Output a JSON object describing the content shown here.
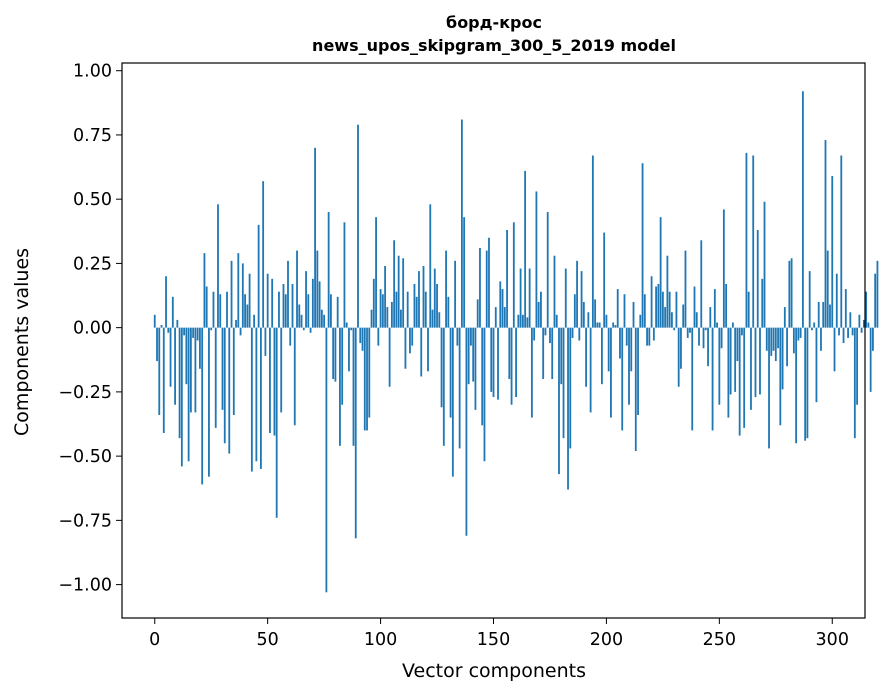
{
  "chart_data": {
    "type": "bar",
    "title": "борд-крос",
    "subtitle": "news_upos_skipgram_300_5_2019 model",
    "xlabel": "Vector components",
    "ylabel": "Components values",
    "xlim": [
      -14.5,
      314.5
    ],
    "ylim": [
      -1.13,
      1.03
    ],
    "xticks": [
      0,
      50,
      100,
      150,
      200,
      250,
      300
    ],
    "xtick_labels": [
      "0",
      "50",
      "100",
      "150",
      "200",
      "250",
      "300"
    ],
    "yticks": [
      1.0,
      0.75,
      0.5,
      0.25,
      0.0,
      -0.25,
      -0.5,
      -0.75,
      -1.0
    ],
    "ytick_labels": [
      "1.00",
      "0.75",
      "0.50",
      "0.25",
      "0.00",
      "−0.25",
      "−0.50",
      "−0.75",
      "−1.00"
    ],
    "grid": false,
    "bar_color": "#1f77b4",
    "values": [
      0.05,
      -0.13,
      -0.34,
      0.01,
      -0.41,
      0.2,
      -0.02,
      -0.23,
      0.12,
      -0.3,
      0.03,
      -0.43,
      -0.54,
      -0.03,
      -0.22,
      -0.52,
      -0.33,
      -0.04,
      -0.33,
      -0.05,
      -0.16,
      -0.61,
      0.29,
      0.16,
      -0.58,
      -0.01,
      0.14,
      -0.39,
      0.48,
      0.13,
      -0.32,
      -0.45,
      0.14,
      -0.49,
      0.26,
      -0.34,
      0.03,
      0.29,
      -0.03,
      0.25,
      0.13,
      0.09,
      0.21,
      -0.56,
      0.05,
      -0.52,
      0.4,
      -0.55,
      0.57,
      -0.11,
      0.21,
      -0.41,
      0.19,
      -0.42,
      -0.74,
      0.14,
      -0.33,
      0.17,
      0.13,
      0.26,
      -0.07,
      0.17,
      -0.38,
      0.3,
      0.09,
      0.05,
      -0.01,
      0.22,
      0.13,
      -0.02,
      0.19,
      0.7,
      0.3,
      0.18,
      0.07,
      0.05,
      -1.03,
      0.45,
      0.13,
      -0.2,
      -0.21,
      0.12,
      -0.46,
      -0.3,
      0.41,
      0.02,
      -0.17,
      -0.01,
      -0.46,
      -0.82,
      0.79,
      -0.06,
      -0.09,
      -0.4,
      -0.4,
      -0.35,
      0.07,
      0.19,
      0.43,
      -0.07,
      0.15,
      0.13,
      0.24,
      0.08,
      -0.23,
      0.1,
      0.34,
      0.14,
      0.28,
      0.07,
      0.27,
      -0.16,
      0.14,
      -0.1,
      -0.07,
      0.17,
      0.12,
      0.22,
      -0.19,
      0.24,
      0.14,
      -0.17,
      0.48,
      0.07,
      0.23,
      0.17,
      0.06,
      -0.31,
      -0.46,
      0.3,
      0.12,
      -0.35,
      -0.58,
      0.26,
      -0.07,
      -0.47,
      0.81,
      0.43,
      -0.81,
      -0.22,
      -0.07,
      -0.21,
      -0.32,
      0.11,
      0.31,
      -0.38,
      -0.52,
      0.3,
      0.35,
      -0.25,
      -0.27,
      0.08,
      -0.28,
      0.18,
      0.15,
      0.08,
      0.38,
      -0.2,
      -0.3,
      0.41,
      -0.27,
      0.05,
      0.23,
      0.05,
      0.61,
      0.04,
      0.23,
      -0.35,
      -0.05,
      0.53,
      0.1,
      0.14,
      -0.2,
      -0.03,
      0.45,
      -0.06,
      -0.2,
      0.28,
      0.05,
      -0.57,
      -0.22,
      -0.43,
      0.23,
      -0.63,
      -0.47,
      -0.04,
      0.13,
      0.26,
      -0.05,
      0.22,
      0.1,
      -0.23,
      0.06,
      -0.33,
      0.67,
      0.11,
      0.02,
      0.02,
      -0.22,
      0.37,
      0.05,
      -0.17,
      -0.35,
      0.02,
      0.01,
      0.15,
      -0.12,
      -0.4,
      0.13,
      -0.07,
      -0.3,
      -0.17,
      0.1,
      -0.48,
      -0.34,
      0.05,
      0.64,
      0.13,
      -0.07,
      -0.07,
      0.2,
      -0.05,
      0.16,
      0.17,
      0.43,
      0.14,
      0.08,
      0.28,
      0.14,
      0.06,
      -0.01,
      0.14,
      -0.23,
      -0.16,
      0.09,
      0.3,
      -0.04,
      -0.02,
      -0.4,
      0.16,
      0.06,
      -0.07,
      0.34,
      -0.08,
      -0.01,
      -0.15,
      0.08,
      -0.4,
      0.15,
      0.02,
      -0.3,
      -0.08,
      0.46,
      0.17,
      -0.35,
      -0.26,
      0.02,
      -0.25,
      -0.13,
      -0.42,
      -0.03,
      -0.39,
      0.68,
      0.14,
      -0.32,
      0.67,
      -0.27,
      0.38,
      -0.26,
      0.19,
      0.49,
      -0.09,
      -0.47,
      -0.11,
      -0.09,
      -0.13,
      -0.08,
      -0.38,
      -0.24,
      0.08,
      -0.15,
      0.26,
      0.27,
      -0.1,
      -0.45,
      -0.05,
      -0.04,
      0.92,
      -0.44,
      -0.43,
      0.22,
      -0.01,
      0.02,
      -0.29,
      0.1,
      -0.09,
      0.1,
      0.73,
      0.3,
      0.09,
      0.59,
      -0.17,
      0.21,
      -0.03,
      0.67,
      -0.06,
      0.15,
      -0.04,
      0.06,
      -0.03,
      -0.43,
      -0.3,
      0.05,
      -0.02,
      0.03,
      0.14,
      0.02,
      -0.25,
      -0.09,
      0.21,
      0.26
    ]
  }
}
